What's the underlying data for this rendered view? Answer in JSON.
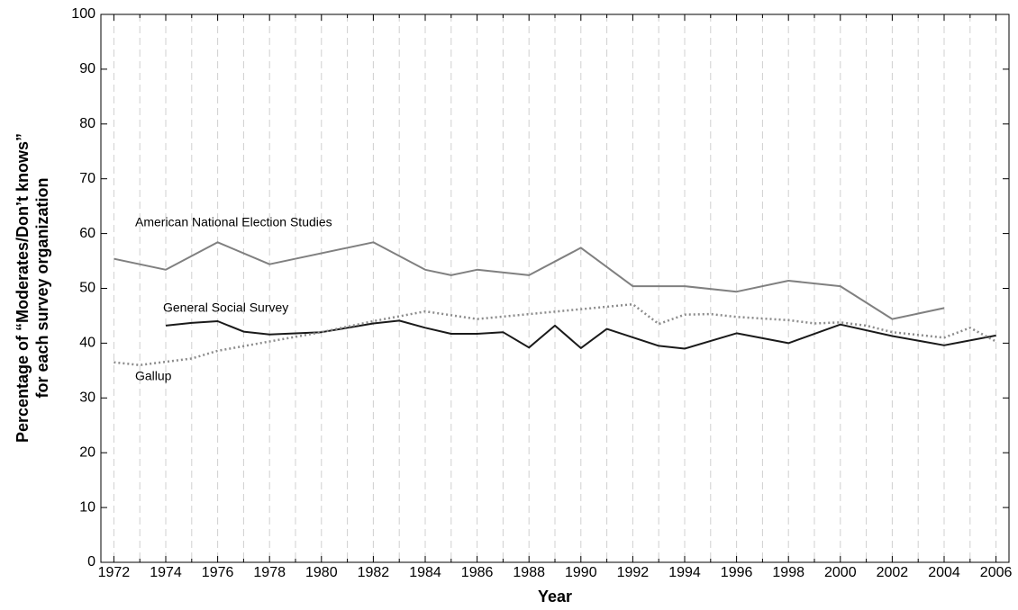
{
  "chart_data": {
    "type": "line",
    "xlabel": "Year",
    "ylabel": [
      "Percentage of “Moderates/Don’t knows”",
      "for each survey organization"
    ],
    "xlim": [
      1971.5,
      2006.5
    ],
    "xticks": [
      1972,
      1974,
      1976,
      1978,
      1980,
      1982,
      1984,
      1986,
      1988,
      1990,
      1992,
      1994,
      1996,
      1998,
      2000,
      2002,
      2004,
      2006
    ],
    "x_minor_ticks": [
      1973,
      1975,
      1977,
      1979,
      1981,
      1983,
      1985,
      1987,
      1989,
      1991,
      1993,
      1995,
      1997,
      1999,
      2001,
      2003,
      2005
    ],
    "ylim": [
      0,
      100
    ],
    "yticks": [
      0,
      10,
      20,
      30,
      40,
      50,
      60,
      70,
      80,
      90,
      100
    ],
    "grid": "x",
    "series": [
      {
        "name": "American National Election Studies",
        "color": "#808080",
        "style": "solid",
        "x": [
          1972,
          1974,
          1976,
          1978,
          1982,
          1984,
          1985,
          1986,
          1988,
          1990,
          1992,
          1994,
          1996,
          1998,
          2000,
          2002,
          2004
        ],
        "values": [
          55.4,
          53.4,
          58.4,
          54.4,
          58.4,
          53.4,
          52.4,
          53.4,
          52.4,
          57.4,
          50.4,
          50.4,
          49.4,
          51.4,
          50.4,
          44.4,
          46.4
        ]
      },
      {
        "name": "General Social Survey",
        "color": "#1a1a1a",
        "style": "solid",
        "x": [
          1974,
          1975,
          1976,
          1977,
          1978,
          1980,
          1982,
          1983,
          1984,
          1985,
          1986,
          1987,
          1988,
          1989,
          1990,
          1991,
          1993,
          1994,
          1996,
          1998,
          2000,
          2002,
          2004,
          2006
        ],
        "values": [
          43.2,
          43.7,
          44.0,
          42.1,
          41.6,
          42.0,
          43.6,
          44.1,
          42.8,
          41.7,
          41.7,
          42.0,
          39.2,
          43.2,
          39.1,
          42.6,
          39.5,
          39.0,
          41.8,
          40.0,
          43.4,
          41.3,
          39.6,
          41.4
        ]
      },
      {
        "name": "Gallup",
        "color": "#8c8c8c",
        "style": "dotted",
        "x": [
          1972,
          1973,
          1975,
          1976,
          1980,
          1982,
          1984,
          1986,
          1992,
          1993,
          1994,
          1995,
          1996,
          1998,
          1999,
          2000,
          2001,
          2002,
          2004,
          2005,
          2006
        ],
        "values": [
          36.5,
          36.0,
          37.2,
          38.6,
          42.0,
          44.0,
          45.8,
          44.4,
          47.1,
          43.5,
          45.2,
          45.3,
          44.8,
          44.2,
          43.6,
          43.8,
          43.2,
          42.0,
          41.0,
          42.8,
          40.3
        ]
      }
    ]
  }
}
